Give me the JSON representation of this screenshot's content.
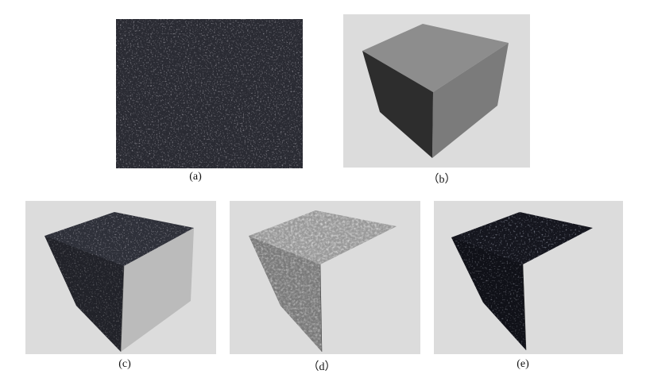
{
  "figure": {
    "panels": [
      {
        "id": "a",
        "caption": "(a)",
        "content": "asphalt-texture-photo"
      },
      {
        "id": "b",
        "caption": "（b）",
        "content": "plain-gray-cube"
      },
      {
        "id": "c",
        "caption": "(c)",
        "content": "dark-textured-cube"
      },
      {
        "id": "d",
        "caption": "（d）",
        "content": "light-gray-bump-cube"
      },
      {
        "id": "e",
        "caption": "(e)",
        "content": "dark-blue-textured-cube"
      }
    ],
    "colors": {
      "panel_bg": "#dcdcdc",
      "asphalt_base": "#2a2b33",
      "cube_top": "#8d8d8d",
      "cube_right": "#7b7b7b",
      "cube_left": "#2d2d2d"
    }
  }
}
